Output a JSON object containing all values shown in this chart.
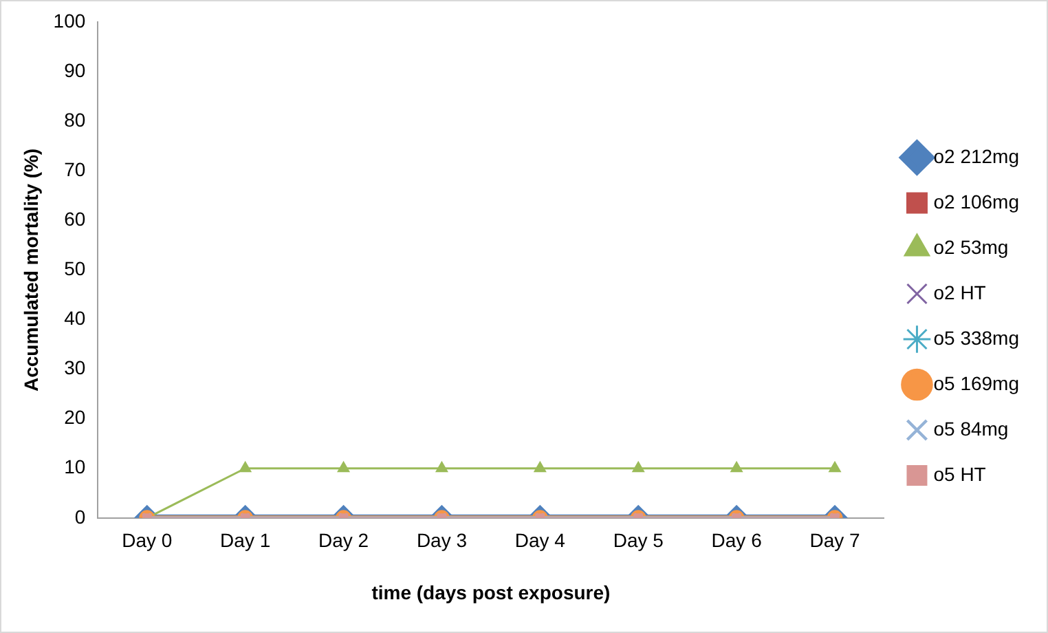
{
  "chart_data": {
    "type": "line",
    "xlabel": "time (days post exposure)",
    "ylabel": "Accumulated mortality (%)",
    "categories": [
      "Day 0",
      "Day 1",
      "Day 2",
      "Day 3",
      "Day 4",
      "Day 5",
      "Day 6",
      "Day 7"
    ],
    "ylim": [
      0,
      100
    ],
    "yticks": [
      0,
      10,
      20,
      30,
      40,
      50,
      60,
      70,
      80,
      90,
      100
    ],
    "grid": false,
    "legend": "right",
    "series": [
      {
        "name": "o2 212mg",
        "color": "#4f81bd",
        "marker": "diamond",
        "values": [
          0,
          0,
          0,
          0,
          0,
          0,
          0,
          0
        ]
      },
      {
        "name": "o2 106mg",
        "color": "#c0504d",
        "marker": "square",
        "values": [
          null,
          null,
          null,
          null,
          null,
          null,
          null,
          null
        ]
      },
      {
        "name": "o2 53mg",
        "color": "#9bbb59",
        "marker": "triangle",
        "values": [
          0,
          10,
          10,
          10,
          10,
          10,
          10,
          10
        ]
      },
      {
        "name": "o2 HT",
        "color": "#8064a2",
        "marker": "cross",
        "values": [
          null,
          null,
          null,
          null,
          null,
          null,
          null,
          null
        ]
      },
      {
        "name": "o5 338mg",
        "color": "#4bacc6",
        "marker": "star",
        "values": [
          null,
          null,
          null,
          null,
          null,
          null,
          null,
          null
        ]
      },
      {
        "name": "o5 169mg",
        "color": "#f79646",
        "marker": "circle",
        "values": [
          0,
          0,
          0,
          0,
          0,
          0,
          0,
          0
        ]
      },
      {
        "name": "o5 84mg",
        "color": "#95b3d7",
        "marker": "cross",
        "values": [
          0,
          0,
          0,
          0,
          0,
          0,
          0,
          0
        ]
      },
      {
        "name": "o5 HT",
        "color": "#d99694",
        "marker": "square",
        "values": [
          0,
          0,
          0,
          0,
          0,
          0,
          0,
          0
        ]
      }
    ]
  }
}
